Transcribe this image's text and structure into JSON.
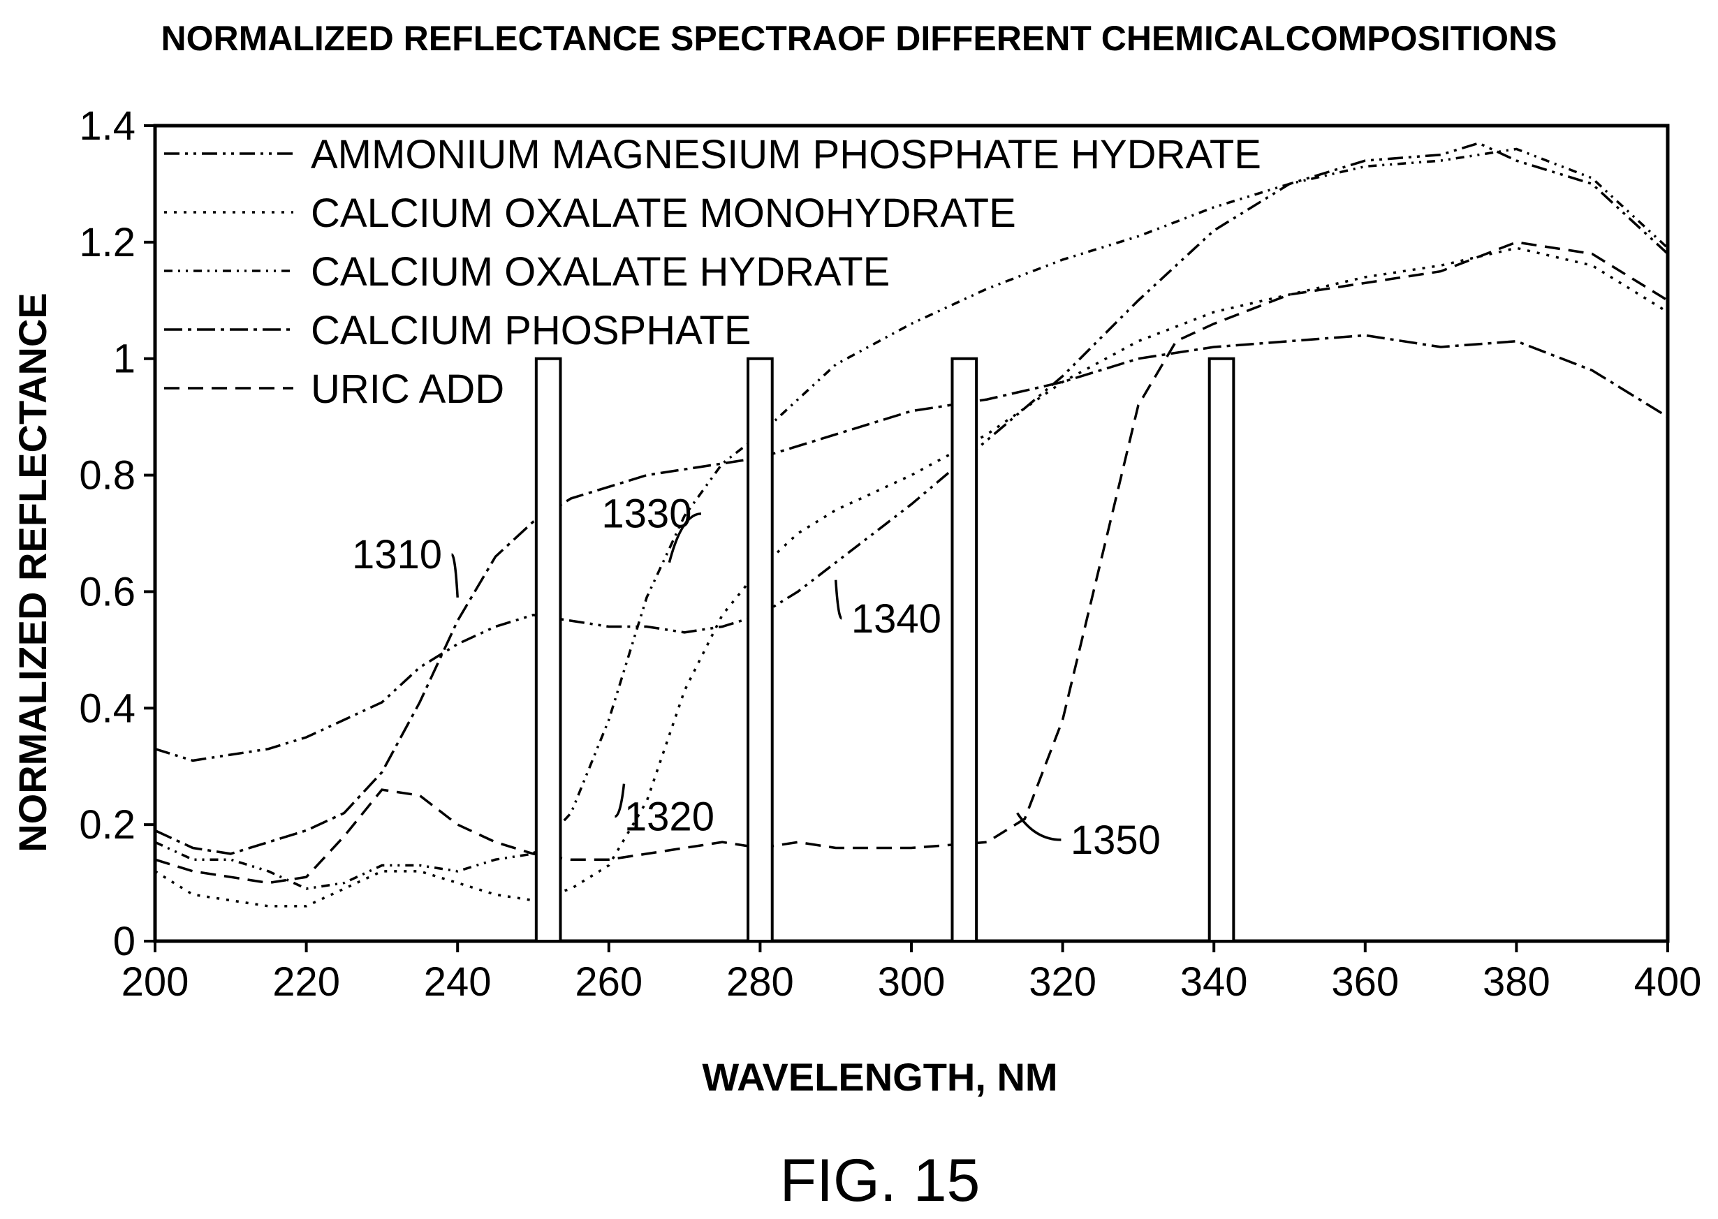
{
  "figure_label": "FIG. 15",
  "chart_data": {
    "type": "line",
    "title": "NORMALIZED REFLECTANCE SPECTRAOF DIFFERENT CHEMICALCOMPOSITIONS",
    "xlabel": "WAVELENGTH, NM",
    "ylabel": "NORMALIZED REFLECTANCE",
    "xlim": [
      200,
      400
    ],
    "ylim": [
      0,
      1.4
    ],
    "x_ticks": [
      "200",
      "220",
      "240",
      "260",
      "280",
      "300",
      "320",
      "340",
      "360",
      "380",
      "400"
    ],
    "y_ticks": [
      "0",
      "0.2",
      "0.4",
      "0.6",
      "0.8",
      "1",
      "1.2",
      "1.4"
    ],
    "grid": false,
    "legend_position": "top-left",
    "series": [
      {
        "name": "AMMONIUM MAGNESIUM PHOSPHATE HYDRATE",
        "dash": "22 8 4 8 4 8",
        "x": [
          200,
          205,
          210,
          215,
          220,
          225,
          230,
          235,
          240,
          245,
          250,
          255,
          260,
          265,
          270,
          275,
          280,
          285,
          290,
          300,
          310,
          320,
          330,
          340,
          350,
          360,
          370,
          375,
          380,
          390,
          400
        ],
        "y": [
          0.33,
          0.31,
          0.32,
          0.33,
          0.35,
          0.38,
          0.41,
          0.47,
          0.51,
          0.54,
          0.56,
          0.55,
          0.54,
          0.54,
          0.53,
          0.54,
          0.56,
          0.6,
          0.65,
          0.75,
          0.86,
          0.97,
          1.1,
          1.22,
          1.3,
          1.34,
          1.35,
          1.37,
          1.34,
          1.3,
          1.18
        ]
      },
      {
        "name": "CALCIUM OXALATE MONOHYDRATE",
        "dash": "4 10",
        "x": [
          200,
          205,
          210,
          215,
          220,
          225,
          230,
          235,
          240,
          245,
          250,
          255,
          260,
          265,
          270,
          275,
          280,
          285,
          290,
          300,
          310,
          320,
          330,
          340,
          350,
          360,
          370,
          380,
          390,
          400
        ],
        "y": [
          0.12,
          0.08,
          0.07,
          0.06,
          0.06,
          0.09,
          0.12,
          0.12,
          0.1,
          0.08,
          0.07,
          0.09,
          0.13,
          0.24,
          0.43,
          0.56,
          0.64,
          0.7,
          0.74,
          0.8,
          0.87,
          0.96,
          1.03,
          1.08,
          1.11,
          1.14,
          1.16,
          1.19,
          1.16,
          1.08
        ]
      },
      {
        "name": "CALCIUM OXALATE HYDRATE",
        "dash": "12 8 3 8 3 8",
        "x": [
          200,
          205,
          210,
          215,
          220,
          225,
          230,
          235,
          240,
          245,
          250,
          255,
          260,
          265,
          270,
          275,
          280,
          285,
          290,
          300,
          310,
          320,
          330,
          340,
          350,
          360,
          370,
          380,
          390,
          400
        ],
        "y": [
          0.17,
          0.14,
          0.14,
          0.12,
          0.09,
          0.1,
          0.13,
          0.13,
          0.12,
          0.14,
          0.15,
          0.22,
          0.38,
          0.59,
          0.73,
          0.82,
          0.87,
          0.93,
          0.99,
          1.06,
          1.12,
          1.17,
          1.21,
          1.26,
          1.3,
          1.33,
          1.34,
          1.36,
          1.31,
          1.19
        ]
      },
      {
        "name": "CALCIUM PHOSPHATE",
        "dash": "26 8 5 8",
        "x": [
          200,
          205,
          210,
          215,
          220,
          225,
          230,
          235,
          240,
          245,
          250,
          255,
          260,
          265,
          270,
          275,
          280,
          285,
          290,
          300,
          310,
          320,
          330,
          340,
          350,
          360,
          370,
          380,
          390,
          400
        ],
        "y": [
          0.19,
          0.16,
          0.15,
          0.17,
          0.19,
          0.22,
          0.29,
          0.41,
          0.55,
          0.66,
          0.72,
          0.76,
          0.78,
          0.8,
          0.81,
          0.82,
          0.83,
          0.85,
          0.87,
          0.91,
          0.93,
          0.96,
          1.0,
          1.02,
          1.03,
          1.04,
          1.02,
          1.03,
          0.98,
          0.9
        ]
      },
      {
        "name": "URIC ADD",
        "dash": "22 12",
        "x": [
          200,
          205,
          210,
          215,
          220,
          225,
          230,
          235,
          240,
          245,
          250,
          255,
          260,
          265,
          270,
          275,
          280,
          285,
          290,
          300,
          310,
          315,
          320,
          325,
          330,
          335,
          340,
          350,
          360,
          370,
          380,
          390,
          400
        ],
        "y": [
          0.14,
          0.12,
          0.11,
          0.1,
          0.11,
          0.18,
          0.26,
          0.25,
          0.2,
          0.17,
          0.15,
          0.14,
          0.14,
          0.15,
          0.16,
          0.17,
          0.16,
          0.17,
          0.16,
          0.16,
          0.17,
          0.21,
          0.38,
          0.65,
          0.92,
          1.03,
          1.06,
          1.11,
          1.13,
          1.15,
          1.2,
          1.18,
          1.1
        ]
      }
    ],
    "marker_bars": [
      {
        "center": 252,
        "height": 1.0
      },
      {
        "center": 280,
        "height": 1.0
      },
      {
        "center": 307,
        "height": 1.0
      },
      {
        "center": 341,
        "height": 1.0
      }
    ],
    "annotations": [
      {
        "text": "1310",
        "x": 232,
        "y": 0.64,
        "target_x": 240,
        "target_y": 0.59
      },
      {
        "text": "1320",
        "x": 268,
        "y": 0.19,
        "target_x": 262,
        "target_y": 0.27
      },
      {
        "text": "1330",
        "x": 265,
        "y": 0.71,
        "target_x": 268,
        "target_y": 0.65
      },
      {
        "text": "1340",
        "x": 298,
        "y": 0.53,
        "target_x": 290,
        "target_y": 0.62
      },
      {
        "text": "1350",
        "x": 327,
        "y": 0.15,
        "target_x": 314,
        "target_y": 0.22
      }
    ]
  }
}
